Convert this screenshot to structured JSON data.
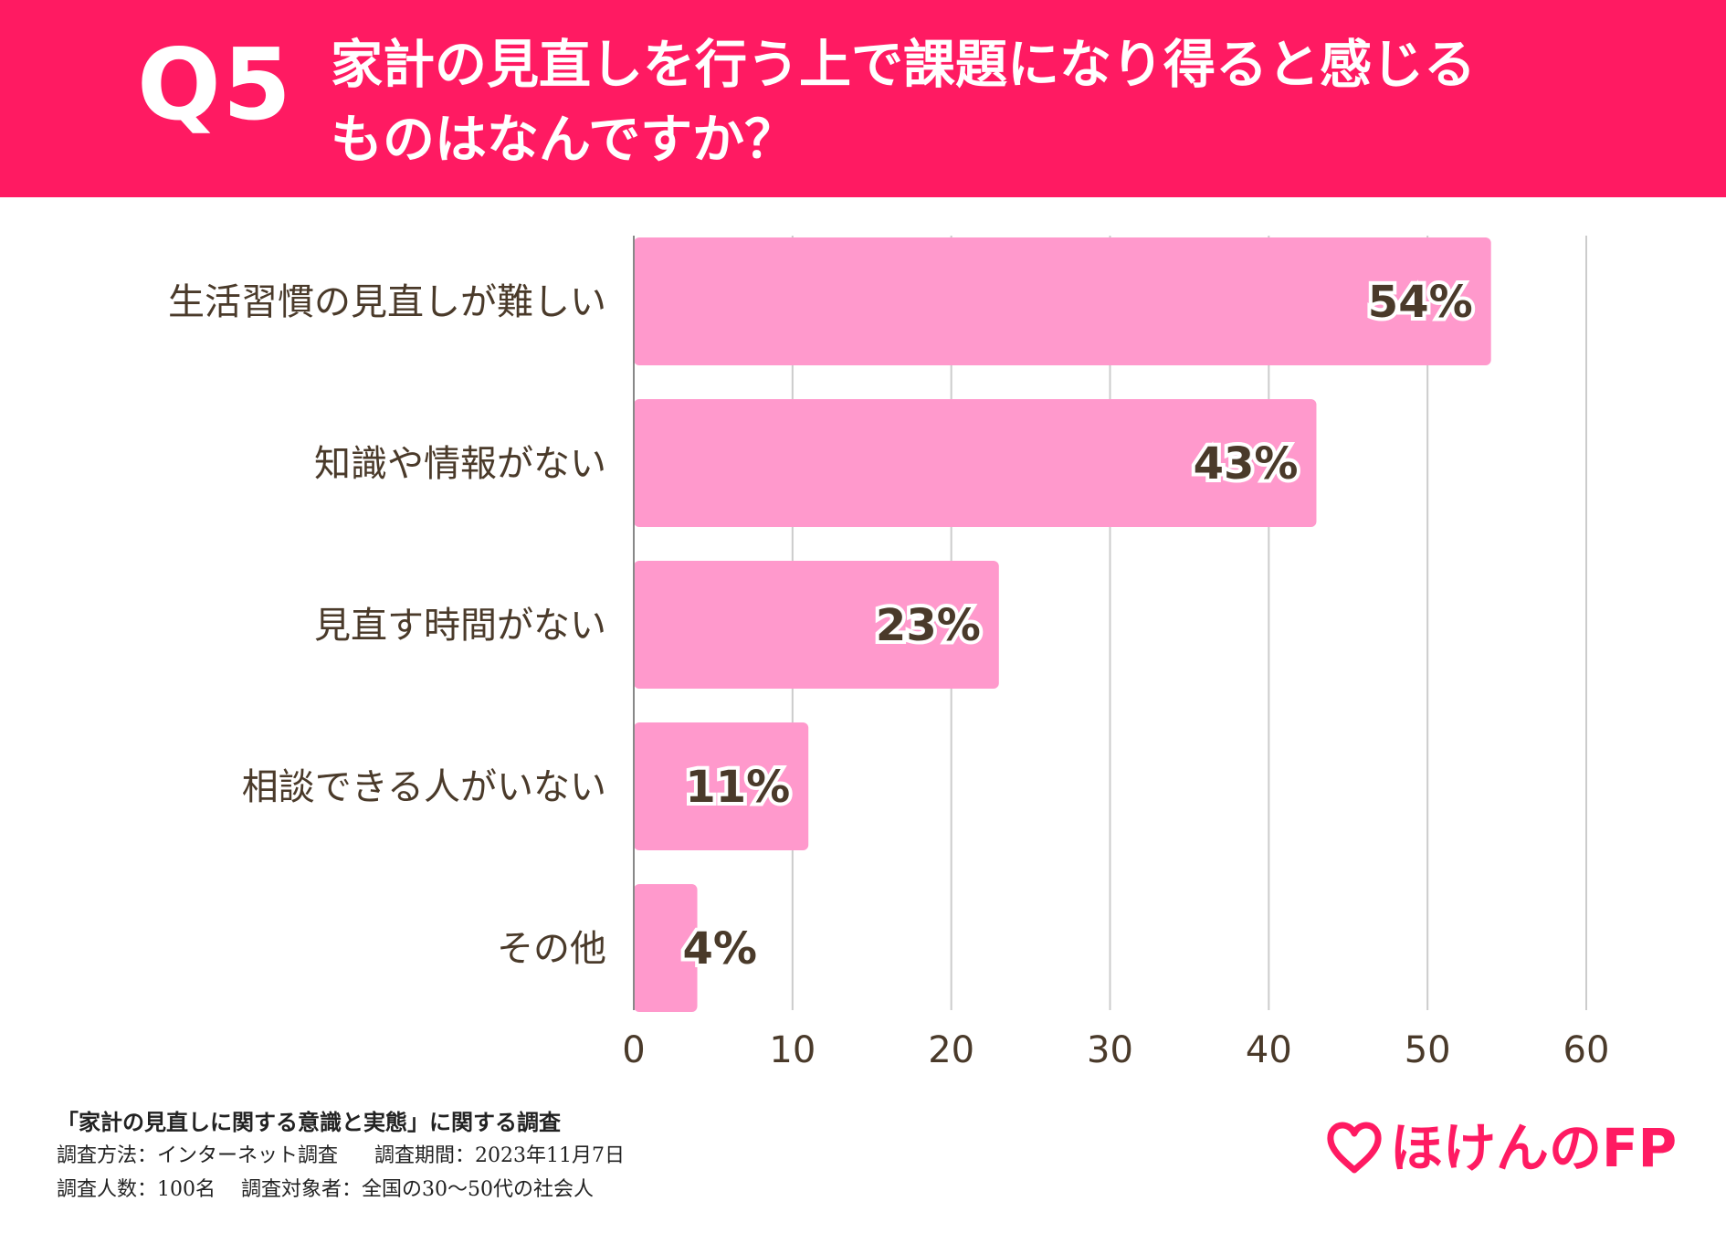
{
  "header": {
    "question_number": "Q5",
    "question_line1": "家計の見直しを行う上で課題になり得ると感じる",
    "question_line2": "ものはなんですか？"
  },
  "colors": {
    "banner": "#ff1a62",
    "bar": "#ff99cc",
    "text": "#4a3a2a",
    "grid": "#cccccc"
  },
  "chart_data": {
    "type": "bar",
    "orientation": "horizontal",
    "categories": [
      "生活習慣の見直しが難しい",
      "知識や情報がない",
      "見直す時間がない",
      "相談できる人がいない",
      "その他"
    ],
    "values": [
      54,
      43,
      23,
      11,
      4
    ],
    "value_labels": [
      "54%",
      "43%",
      "23%",
      "11%",
      "4%"
    ],
    "xlim": [
      0,
      60
    ],
    "xticks": [
      0,
      10,
      20,
      30,
      40,
      50,
      60
    ],
    "xlabel": "",
    "ylabel": "",
    "grid": true,
    "legend": "none"
  },
  "footer": {
    "survey_title": "「家計の見直しに関する意識と実態」に関する調査",
    "method": "調査方法：インターネット調査",
    "period": "調査期間：2023年11月7日",
    "respondents": "調査人数：100名",
    "target": "調査対象者：全国の30〜50代の社会人"
  },
  "logo": {
    "text": "ほけんのFP",
    "icon": "heart-icon"
  }
}
